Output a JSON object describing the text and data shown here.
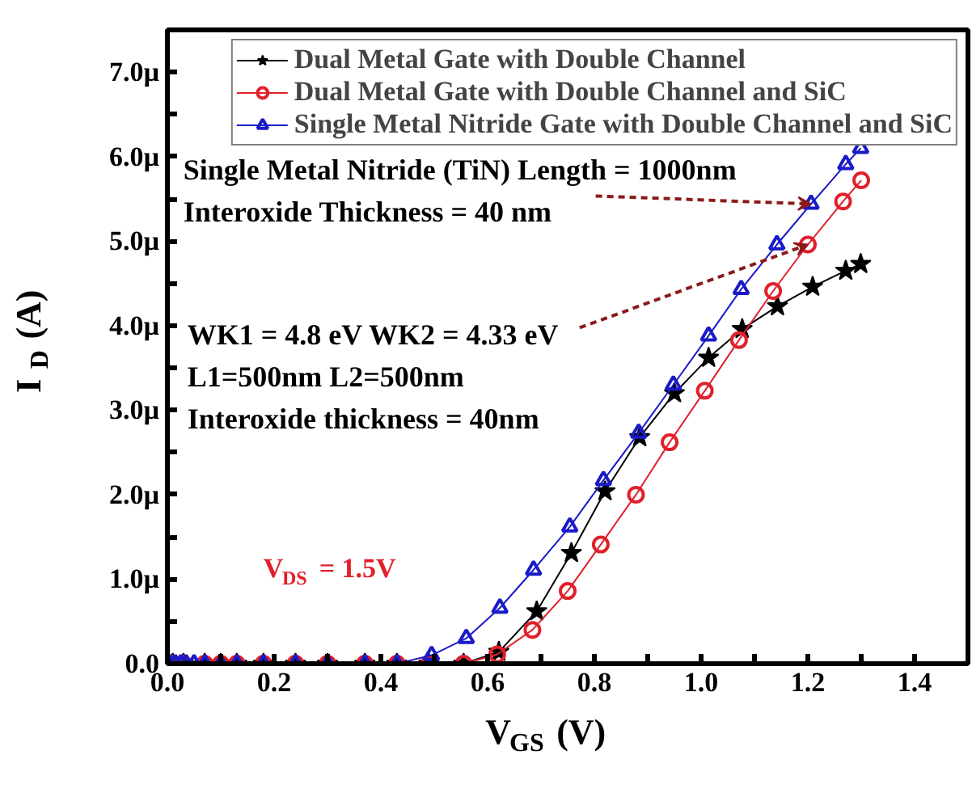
{
  "chart_data": {
    "type": "line",
    "xlabel": "V$_{GS}$ (V)",
    "ylabel": "I$_{D}$ (A)",
    "xlim": [
      0,
      1.5
    ],
    "ylim": [
      0,
      7.5
    ],
    "xticks": [
      {
        "value": 0,
        "label": "0.0"
      },
      {
        "value": 0.1,
        "label": null
      },
      {
        "value": 0.2,
        "label": "0.2"
      },
      {
        "value": 0.3,
        "label": null
      },
      {
        "value": 0.4,
        "label": "0.4"
      },
      {
        "value": 0.5,
        "label": null
      },
      {
        "value": 0.6,
        "label": "0.6"
      },
      {
        "value": 0.7,
        "label": null
      },
      {
        "value": 0.8,
        "label": "0.8"
      },
      {
        "value": 0.9,
        "label": null
      },
      {
        "value": 1.0,
        "label": "1.0"
      },
      {
        "value": 1.1,
        "label": null
      },
      {
        "value": 1.2,
        "label": "1.2"
      },
      {
        "value": 1.3,
        "label": null
      },
      {
        "value": 1.4,
        "label": "1.4"
      }
    ],
    "yticks": [
      {
        "value": 0,
        "label": "0.0"
      },
      {
        "value": 0.5,
        "label": null
      },
      {
        "value": 1,
        "label": "1.0µ"
      },
      {
        "value": 1.5,
        "label": null
      },
      {
        "value": 2,
        "label": "2.0µ"
      },
      {
        "value": 2.5,
        "label": null
      },
      {
        "value": 3,
        "label": "3.0µ"
      },
      {
        "value": 3.5,
        "label": null
      },
      {
        "value": 4,
        "label": "4.0µ"
      },
      {
        "value": 4.5,
        "label": null
      },
      {
        "value": 5,
        "label": "5.0µ"
      },
      {
        "value": 5.5,
        "label": null
      },
      {
        "value": 6,
        "label": "6.0µ"
      },
      {
        "value": 6.5,
        "label": null
      },
      {
        "value": 7,
        "label": "7.0µ"
      },
      {
        "value": 7.5,
        "label": null
      }
    ],
    "grid": false,
    "legend": "top right",
    "line_style": "solid",
    "series": [
      {
        "name": "Dual Metal Gate with Double Channel",
        "color": "#000000",
        "marker": "star",
        "x": [
          0.01,
          0.03,
          0.07,
          0.1,
          0.13,
          0.18,
          0.24,
          0.3,
          0.37,
          0.43,
          0.49,
          0.555,
          0.621,
          0.692,
          0.757,
          0.82,
          0.885,
          0.95,
          1.014,
          1.077,
          1.143,
          1.209,
          1.271,
          1.299
        ],
        "values": [
          0,
          0,
          0,
          0,
          0,
          0,
          0,
          0,
          0,
          0,
          0,
          0,
          0.14,
          0.62,
          1.31,
          2.04,
          2.68,
          3.2,
          3.62,
          3.96,
          4.23,
          4.46,
          4.65,
          4.73
        ]
      },
      {
        "name": "Dual Metal Gate with Double Channel and SiC",
        "color": "#e0202a",
        "marker": "circle",
        "x": [
          0.01,
          0.03,
          0.07,
          0.1,
          0.13,
          0.18,
          0.24,
          0.3,
          0.37,
          0.43,
          0.49,
          0.555,
          0.618,
          0.684,
          0.75,
          0.812,
          0.878,
          0.941,
          1.007,
          1.071,
          1.135,
          1.2,
          1.266,
          1.3
        ],
        "values": [
          0,
          0,
          0,
          0,
          0,
          0,
          0,
          0,
          0,
          0,
          0,
          0,
          0.11,
          0.4,
          0.86,
          1.41,
          2.0,
          2.62,
          3.23,
          3.83,
          4.41,
          4.96,
          5.47,
          5.72
        ]
      },
      {
        "name": "Single Metal Nitride Gate with Double Channel and SiC",
        "color": "#1a1ac8",
        "marker": "triangle",
        "x": [
          0.005,
          0.015,
          0.025,
          0.035,
          0.05,
          0.07,
          0.1,
          0.13,
          0.18,
          0.24,
          0.3,
          0.37,
          0.43,
          0.495,
          0.56,
          0.623,
          0.686,
          0.754,
          0.817,
          0.883,
          0.948,
          1.014,
          1.075,
          1.142,
          1.206,
          1.271,
          1.299
        ],
        "values": [
          0,
          0,
          0,
          0,
          0,
          0,
          0,
          0,
          0,
          0,
          0,
          0,
          0,
          0.1,
          0.3,
          0.66,
          1.11,
          1.62,
          2.17,
          2.73,
          3.3,
          3.88,
          4.43,
          4.96,
          5.44,
          5.91,
          6.1
        ]
      }
    ],
    "annotations": [
      {
        "text": "Single Metal Nitride (TiN) Length = 1000nm\nInteroxide Thickness = 40 nm",
        "x": 1.206,
        "y": 5.44
      },
      {
        "text": "WK1 = 4.8 eV WK2 = 4.33 eV\nL1=500nm L2=500nm\nInteroxide thickness = 40nm",
        "x": 1.2,
        "y": 4.96
      },
      "V$_{DS}$ = 1.5V"
    ]
  }
}
